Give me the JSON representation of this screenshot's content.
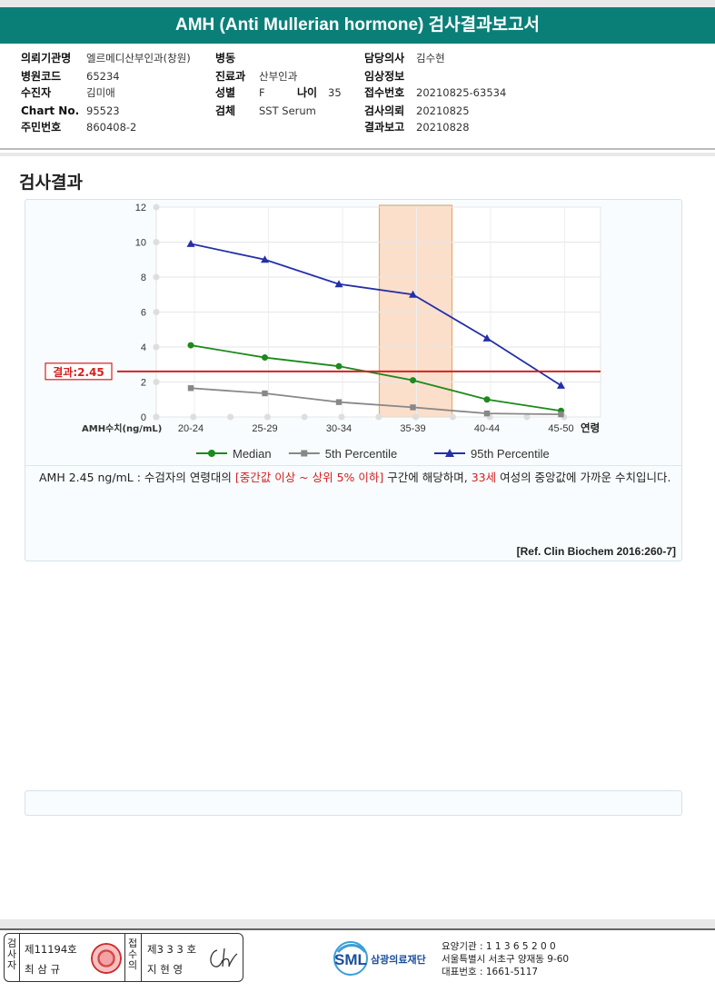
{
  "header": {
    "title": "AMH (Anti Mullerian hormone) 검사결과보고서"
  },
  "info": {
    "institution_label": "의뢰기관명",
    "institution": "엘르메디산부인과(창원)",
    "hospital_code_label": "병원코드",
    "hospital_code": "65234",
    "patient_label": "수진자",
    "patient": "김미애",
    "chart_label": "Chart No.",
    "chart_no": "95523",
    "resident_label": "주민번호",
    "resident_no": "860408-2",
    "ward_label": "병동",
    "ward": "",
    "dept_label": "진료과",
    "dept": "산부인과",
    "sex_label": "성별",
    "sex": "F",
    "age_label": "나이",
    "age": "35",
    "specimen_label": "검체",
    "specimen": "SST Serum",
    "doctor_label": "담당의사",
    "doctor": "김수현",
    "clinical_label": "임상정보",
    "clinical": "",
    "receipt_label": "접수번호",
    "receipt_no": "20210825-63534",
    "request_label": "검사의뢰",
    "request_date": "20210825",
    "report_label": "결과보고",
    "report_date": "20210828"
  },
  "section_title": "검사결과",
  "chart_data": {
    "type": "line",
    "categories": [
      "20-24",
      "25-29",
      "30-34",
      "35-39",
      "40-44",
      "45-50"
    ],
    "xlabel": "연령",
    "ylabel": "AMH수치(ng/mL)",
    "ylim": [
      0,
      12
    ],
    "yticks": [
      0,
      2,
      4,
      6,
      8,
      10,
      12
    ],
    "grid": true,
    "legend_position": "bottom",
    "series": [
      {
        "name": "Median",
        "values": [
          4.1,
          3.4,
          2.9,
          2.1,
          1.0,
          0.35
        ],
        "color": "#1c8a1c",
        "marker": "circle"
      },
      {
        "name": "5th Percentile",
        "values": [
          1.65,
          1.35,
          0.85,
          0.55,
          0.2,
          0.15
        ],
        "color": "#888888",
        "marker": "square"
      },
      {
        "name": "95th Percentile",
        "values": [
          9.9,
          9.0,
          7.6,
          7.0,
          4.5,
          1.8
        ],
        "color": "#2430a8",
        "marker": "triangle"
      }
    ],
    "result_line": {
      "label": "결과:2.45",
      "value": 2.45,
      "color": "#d62020"
    },
    "highlight_category": "35-39",
    "highlight_color": "#fbdcc6"
  },
  "comment": {
    "part1": "AMH  2.45 ng/mL : 수검자의 연령대의 ",
    "range": "[중간값 이상 ~ 상위 5% 이하]",
    "part2": "  구간에 해당하며, ",
    "age": "33세",
    "part3": " 여성의 중앙값에 가까운 수치입니다."
  },
  "reference": "[Ref. Clin Biochem 2016:260-7]",
  "footer": {
    "examiner_label": "검사자",
    "examiner_no": "제11194호",
    "examiner_name": "최 삼 규",
    "receiver_label": "접수의",
    "receiver_no": "제3 3 3 호",
    "receiver_name": "지 현 영",
    "signature": "Ch",
    "logo_text": "SML",
    "org_name": "삼광의료재단",
    "lab_code": "요양기관 : 1 1 3 6 5 2 0 0",
    "address": "서울특별시 서초구 양재동 9-60",
    "phone": "대표번호 : 1661-5117"
  }
}
